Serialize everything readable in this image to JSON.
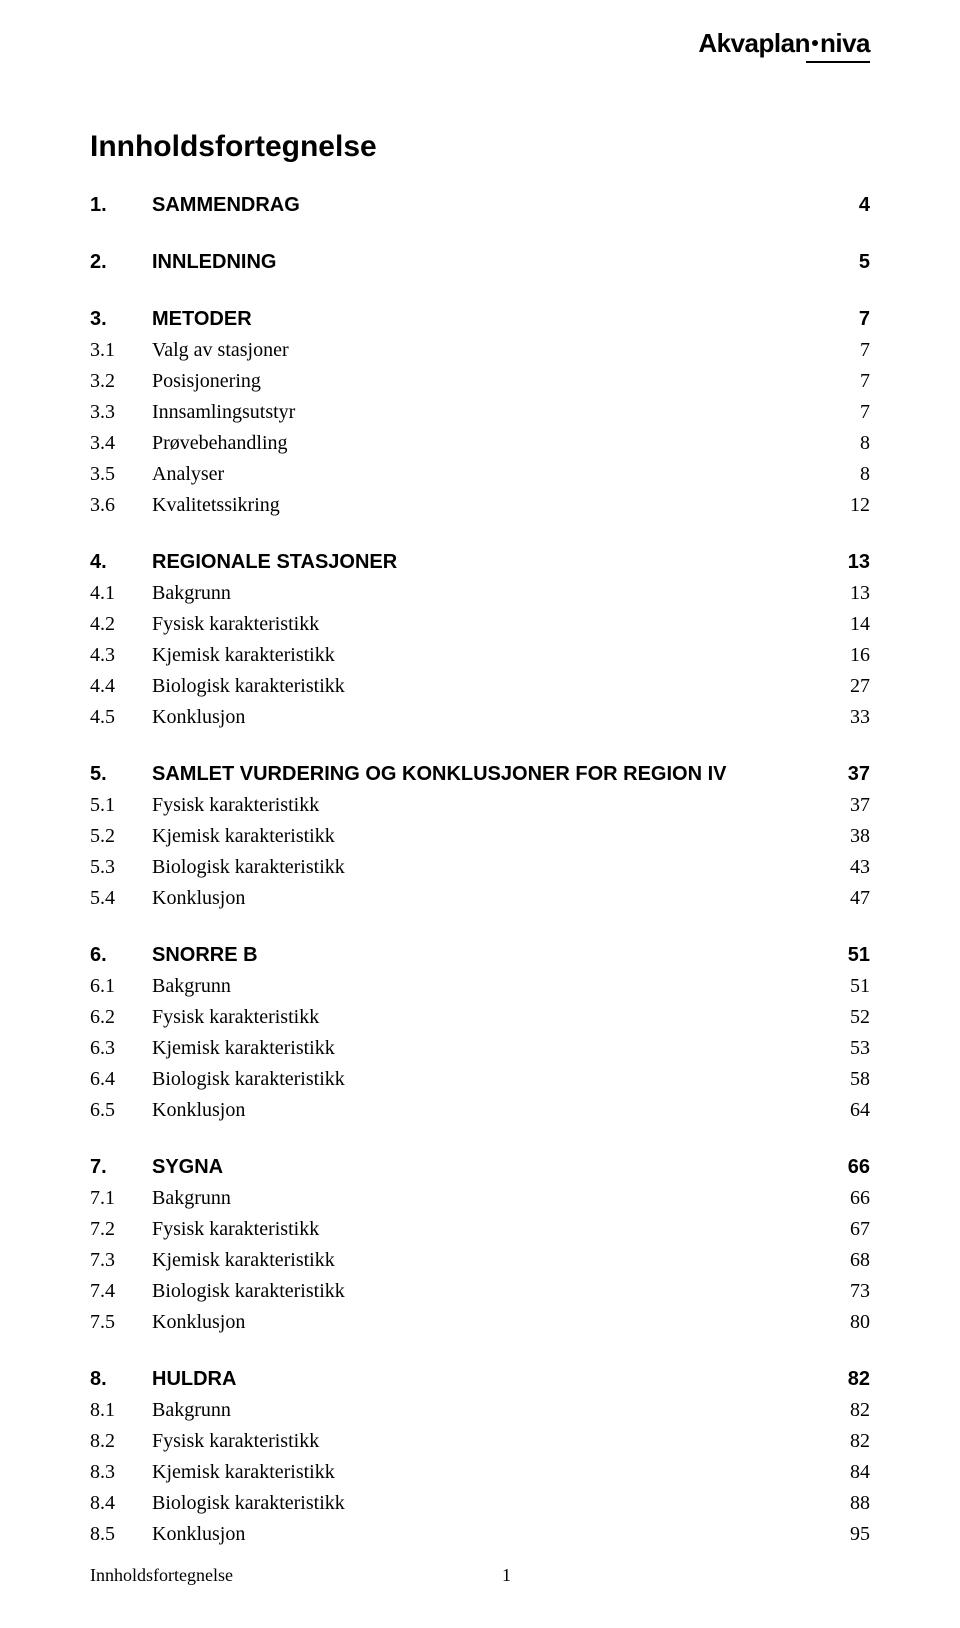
{
  "logo": {
    "part1": "Akvaplan",
    "part2": "niva"
  },
  "title": "Innholdsfortegnelse",
  "footer": {
    "left": "Innholdsfortegnelse",
    "page": "1"
  },
  "sections": [
    {
      "heading": {
        "num": "1.",
        "label": "SAMMENDRAG",
        "page": "4"
      },
      "items": []
    },
    {
      "heading": {
        "num": "2.",
        "label": "INNLEDNING",
        "page": "5"
      },
      "items": []
    },
    {
      "heading": {
        "num": "3.",
        "label": "METODER",
        "page": "7"
      },
      "items": [
        {
          "num": "3.1",
          "label": "Valg av stasjoner",
          "page": "7"
        },
        {
          "num": "3.2",
          "label": "Posisjonering",
          "page": "7"
        },
        {
          "num": "3.3",
          "label": "Innsamlingsutstyr",
          "page": "7"
        },
        {
          "num": "3.4",
          "label": "Prøvebehandling",
          "page": "8"
        },
        {
          "num": "3.5",
          "label": "Analyser",
          "page": "8"
        },
        {
          "num": "3.6",
          "label": "Kvalitetssikring",
          "page": "12"
        }
      ]
    },
    {
      "heading": {
        "num": "4.",
        "label": "REGIONALE STASJONER",
        "page": "13"
      },
      "items": [
        {
          "num": "4.1",
          "label": "Bakgrunn",
          "page": "13"
        },
        {
          "num": "4.2",
          "label": "Fysisk karakteristikk",
          "page": "14"
        },
        {
          "num": "4.3",
          "label": "Kjemisk karakteristikk",
          "page": "16"
        },
        {
          "num": "4.4",
          "label": "Biologisk karakteristikk",
          "page": "27"
        },
        {
          "num": "4.5",
          "label": "Konklusjon",
          "page": "33"
        }
      ]
    },
    {
      "heading": {
        "num": "5.",
        "label": "SAMLET VURDERING OG KONKLUSJONER FOR REGION IV",
        "page": "37"
      },
      "items": [
        {
          "num": "5.1",
          "label": "Fysisk karakteristikk",
          "page": "37"
        },
        {
          "num": "5.2",
          "label": "Kjemisk karakteristikk",
          "page": "38"
        },
        {
          "num": "5.3",
          "label": "Biologisk karakteristikk",
          "page": "43"
        },
        {
          "num": "5.4",
          "label": "Konklusjon",
          "page": "47"
        }
      ]
    },
    {
      "heading": {
        "num": "6.",
        "label": "SNORRE B",
        "page": "51"
      },
      "items": [
        {
          "num": "6.1",
          "label": "Bakgrunn",
          "page": "51"
        },
        {
          "num": "6.2",
          "label": "Fysisk karakteristikk",
          "page": "52"
        },
        {
          "num": "6.3",
          "label": "Kjemisk karakteristikk",
          "page": "53"
        },
        {
          "num": "6.4",
          "label": "Biologisk karakteristikk",
          "page": "58"
        },
        {
          "num": "6.5",
          "label": "Konklusjon",
          "page": "64"
        }
      ]
    },
    {
      "heading": {
        "num": "7.",
        "label": "SYGNA",
        "page": "66"
      },
      "items": [
        {
          "num": "7.1",
          "label": "Bakgrunn",
          "page": "66"
        },
        {
          "num": "7.2",
          "label": "Fysisk karakteristikk",
          "page": "67"
        },
        {
          "num": "7.3",
          "label": "Kjemisk karakteristikk",
          "page": "68"
        },
        {
          "num": "7.4",
          "label": "Biologisk karakteristikk",
          "page": "73"
        },
        {
          "num": "7.5",
          "label": "Konklusjon",
          "page": "80"
        }
      ]
    },
    {
      "heading": {
        "num": "8.",
        "label": "HULDRA",
        "page": "82"
      },
      "items": [
        {
          "num": "8.1",
          "label": "Bakgrunn",
          "page": "82"
        },
        {
          "num": "8.2",
          "label": "Fysisk karakteristikk",
          "page": "82"
        },
        {
          "num": "8.3",
          "label": "Kjemisk karakteristikk",
          "page": "84"
        },
        {
          "num": "8.4",
          "label": "Biologisk karakteristikk",
          "page": "88"
        },
        {
          "num": "8.5",
          "label": "Konklusjon",
          "page": "95"
        }
      ]
    }
  ]
}
